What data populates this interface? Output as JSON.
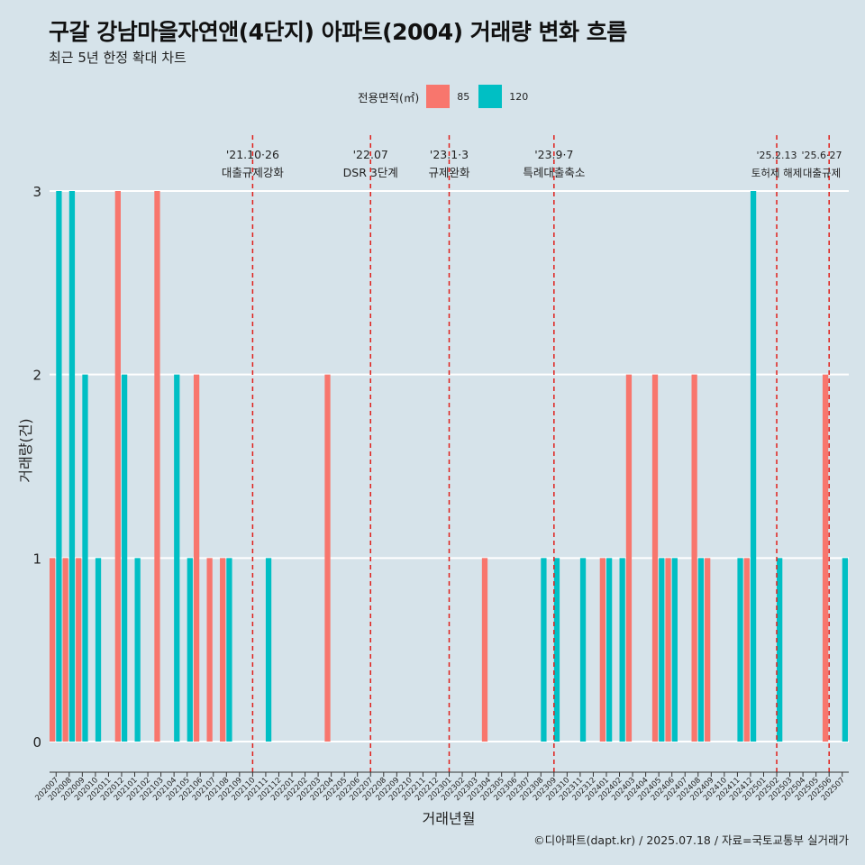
{
  "title": "구갈 강남마을자연앤(4단지) 아파트(2004) 거래량 변화 흐름",
  "subtitle": "최근 5년 한정 확대 차트",
  "caption": "©디아파트(dapt.kr) / 2025.07.18 / 자료=국토교통부 실거래가",
  "legend": {
    "title": "전용면적(㎡)",
    "items": [
      {
        "label": "85",
        "color": "#F8766D"
      },
      {
        "label": "120",
        "color": "#00BFC4"
      }
    ]
  },
  "chart_data": {
    "type": "bar",
    "xlabel": "거래년월",
    "ylabel": "거래량(건)",
    "ylim": [
      0,
      3
    ],
    "yticks": [
      0,
      1,
      2,
      3
    ],
    "grid": true,
    "legend_position": "top",
    "categories": [
      "202007",
      "202008",
      "202009",
      "202010",
      "202011",
      "202012",
      "202101",
      "202102",
      "202103",
      "202104",
      "202105",
      "202106",
      "202107",
      "202108",
      "202109",
      "202110",
      "202111",
      "202112",
      "202201",
      "202202",
      "202203",
      "202204",
      "202205",
      "202206",
      "202207",
      "202208",
      "202209",
      "202210",
      "202211",
      "202212",
      "202301",
      "202302",
      "202303",
      "202304",
      "202305",
      "202306",
      "202307",
      "202308",
      "202309",
      "202310",
      "202311",
      "202312",
      "202401",
      "202402",
      "202403",
      "202404",
      "202405",
      "202406",
      "202407",
      "202408",
      "202409",
      "202410",
      "202411",
      "202412",
      "202501",
      "202502",
      "202503",
      "202504",
      "202505",
      "202506",
      "202507"
    ],
    "series": [
      {
        "name": "85",
        "color": "#F8766D",
        "values": [
          1,
          1,
          1,
          0,
          0,
          3,
          0,
          0,
          3,
          0,
          0,
          2,
          1,
          1,
          0,
          0,
          0,
          0,
          0,
          0,
          0,
          2,
          0,
          0,
          0,
          0,
          0,
          0,
          0,
          0,
          0,
          0,
          0,
          1,
          0,
          0,
          0,
          0,
          0,
          0,
          0,
          0,
          1,
          0,
          2,
          0,
          2,
          1,
          0,
          2,
          1,
          0,
          0,
          1,
          0,
          0,
          0,
          0,
          0,
          2,
          0
        ]
      },
      {
        "name": "120",
        "color": "#00BFC4",
        "values": [
          3,
          3,
          2,
          1,
          0,
          2,
          1,
          0,
          0,
          2,
          1,
          0,
          0,
          1,
          0,
          0,
          1,
          0,
          0,
          0,
          0,
          0,
          0,
          0,
          0,
          0,
          0,
          0,
          0,
          0,
          0,
          0,
          0,
          0,
          0,
          0,
          0,
          1,
          1,
          0,
          1,
          0,
          1,
          1,
          0,
          0,
          1,
          1,
          0,
          1,
          0,
          0,
          1,
          3,
          0,
          1,
          0,
          0,
          0,
          0,
          1
        ]
      }
    ],
    "annotations": [
      {
        "x": "202110",
        "line1": "'21.10·26",
        "line2": "대출규제강화"
      },
      {
        "x": "202207",
        "line1": "'22.07",
        "line2": "DSR 3단계"
      },
      {
        "x": "202301",
        "line1": "'23.1·3",
        "line2": "규제완화"
      },
      {
        "x": "202309",
        "line1": "'23.9·7",
        "line2": "특례대출축소"
      },
      {
        "x": "202502",
        "line1": "'25.2.13",
        "line2": "토허제 해제"
      },
      {
        "x": "202506",
        "line1": "'25.6·27",
        "line2": "대출규제"
      }
    ]
  }
}
